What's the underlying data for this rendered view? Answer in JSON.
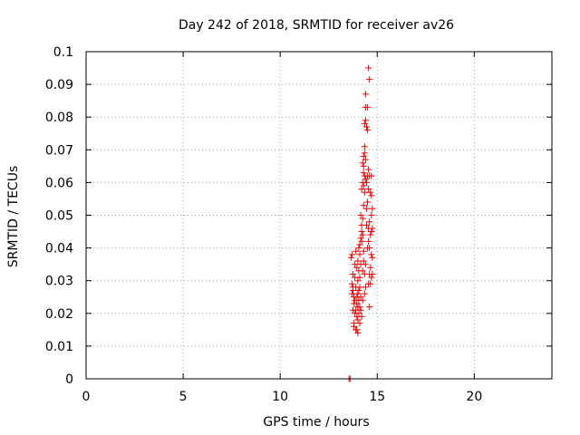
{
  "chart_data": {
    "type": "scatter",
    "title": "Day 242 of 2018, SRMTID for receiver av26",
    "xlabel": "GPS time / hours",
    "ylabel": "SRMTID / TECUs",
    "xlim": [
      0,
      24
    ],
    "ylim": [
      0,
      0.1
    ],
    "xticks": [
      0,
      5,
      10,
      15,
      20
    ],
    "xtick_labels": [
      "0",
      "5",
      "10",
      "15",
      "20"
    ],
    "yticks": [
      0,
      0.01,
      0.02,
      0.03,
      0.04,
      0.05,
      0.06,
      0.07,
      0.08,
      0.09,
      0.1
    ],
    "ytick_labels": [
      "0",
      "0.01",
      "0.02",
      "0.03",
      "0.04",
      "0.05",
      "0.06",
      "0.07",
      "0.08",
      "0.09",
      "0.1"
    ],
    "grid": true,
    "marker": "+",
    "color": "#ff0000",
    "series": [
      {
        "name": "SRMTID",
        "points": [
          [
            13.55,
            0.0
          ],
          [
            13.6,
            0.0
          ],
          [
            13.7,
            0.038
          ],
          [
            13.75,
            0.032
          ],
          [
            13.7,
            0.029
          ],
          [
            13.75,
            0.027
          ],
          [
            13.8,
            0.025
          ],
          [
            13.7,
            0.026
          ],
          [
            13.8,
            0.023
          ],
          [
            13.75,
            0.021
          ],
          [
            13.85,
            0.02
          ],
          [
            13.8,
            0.017
          ],
          [
            13.8,
            0.016
          ],
          [
            13.9,
            0.015
          ],
          [
            13.95,
            0.015
          ],
          [
            13.85,
            0.031
          ],
          [
            13.9,
            0.028
          ],
          [
            13.95,
            0.025
          ],
          [
            14.0,
            0.022
          ],
          [
            13.9,
            0.021
          ],
          [
            14.0,
            0.03
          ],
          [
            14.05,
            0.027
          ],
          [
            14.0,
            0.026
          ],
          [
            14.05,
            0.024
          ],
          [
            14.1,
            0.022
          ],
          [
            13.95,
            0.019
          ],
          [
            14.0,
            0.018
          ],
          [
            13.85,
            0.035
          ],
          [
            13.95,
            0.034
          ],
          [
            13.9,
            0.039
          ],
          [
            14.0,
            0.036
          ],
          [
            14.05,
            0.033
          ],
          [
            14.1,
            0.031
          ],
          [
            14.1,
            0.028
          ],
          [
            14.15,
            0.025
          ],
          [
            14.05,
            0.04
          ],
          [
            14.1,
            0.038
          ],
          [
            14.15,
            0.035
          ],
          [
            14.15,
            0.043
          ],
          [
            14.2,
            0.042
          ],
          [
            14.1,
            0.041
          ],
          [
            14.2,
            0.045
          ],
          [
            14.25,
            0.044
          ],
          [
            14.15,
            0.05
          ],
          [
            14.25,
            0.049
          ],
          [
            14.2,
            0.047
          ],
          [
            14.3,
            0.053
          ],
          [
            14.2,
            0.058
          ],
          [
            14.3,
            0.059
          ],
          [
            14.25,
            0.06
          ],
          [
            14.35,
            0.062
          ],
          [
            14.3,
            0.063
          ],
          [
            14.4,
            0.061
          ],
          [
            14.35,
            0.057
          ],
          [
            14.3,
            0.065
          ],
          [
            14.4,
            0.067
          ],
          [
            14.3,
            0.068
          ],
          [
            14.35,
            0.069
          ],
          [
            14.35,
            0.071
          ],
          [
            14.25,
            0.066
          ],
          [
            14.45,
            0.06
          ],
          [
            14.5,
            0.062
          ],
          [
            14.55,
            0.064
          ],
          [
            14.6,
            0.062
          ],
          [
            14.7,
            0.062
          ],
          [
            14.55,
            0.058
          ],
          [
            14.65,
            0.057
          ],
          [
            14.7,
            0.056
          ],
          [
            14.75,
            0.052
          ],
          [
            14.7,
            0.05
          ],
          [
            14.6,
            0.048
          ],
          [
            14.75,
            0.046
          ],
          [
            14.7,
            0.045
          ],
          [
            14.65,
            0.044
          ],
          [
            14.55,
            0.042
          ],
          [
            14.6,
            0.04
          ],
          [
            14.7,
            0.038
          ],
          [
            14.75,
            0.037
          ],
          [
            14.65,
            0.034
          ],
          [
            14.6,
            0.032
          ],
          [
            14.75,
            0.032
          ],
          [
            14.7,
            0.031
          ],
          [
            14.55,
            0.029
          ],
          [
            14.65,
            0.029
          ],
          [
            14.6,
            0.022
          ],
          [
            14.35,
            0.078
          ],
          [
            14.4,
            0.079
          ],
          [
            14.45,
            0.077
          ],
          [
            14.5,
            0.076
          ],
          [
            14.4,
            0.083
          ],
          [
            14.5,
            0.083
          ],
          [
            14.4,
            0.087
          ],
          [
            14.55,
            0.095
          ],
          [
            14.6,
            0.0915
          ],
          [
            14.3,
            0.036
          ],
          [
            14.3,
            0.039
          ],
          [
            14.25,
            0.033
          ],
          [
            14.4,
            0.035
          ],
          [
            14.35,
            0.032
          ],
          [
            14.5,
            0.04
          ],
          [
            14.45,
            0.047
          ],
          [
            14.55,
            0.046
          ],
          [
            14.45,
            0.052
          ],
          [
            14.5,
            0.054
          ],
          [
            14.4,
            0.028
          ],
          [
            14.35,
            0.026
          ],
          [
            14.25,
            0.024
          ],
          [
            14.15,
            0.021
          ],
          [
            14.05,
            0.02
          ],
          [
            13.95,
            0.023
          ],
          [
            13.85,
            0.024
          ],
          [
            13.75,
            0.028
          ],
          [
            14.1,
            0.017
          ],
          [
            14.2,
            0.019
          ],
          [
            13.65,
            0.037
          ],
          [
            14.0,
            0.014
          ]
        ]
      }
    ]
  }
}
